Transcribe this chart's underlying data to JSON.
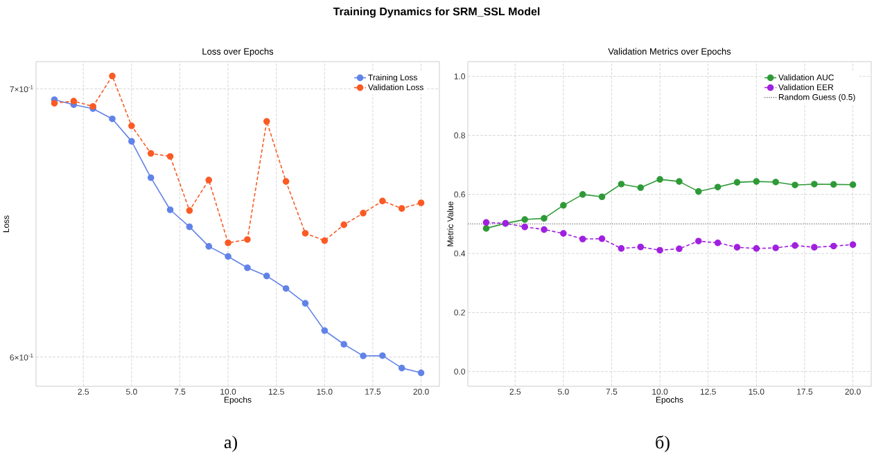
{
  "chart_data": [
    {
      "type": "line",
      "title": "Loss over Epochs",
      "xlabel": "Epochs",
      "ylabel": "Loss",
      "log": "y",
      "annotations": [
        "Training Dynamics for SRM_SSL Model",
        "а)"
      ],
      "x": [
        1,
        2,
        3,
        4,
        5,
        6,
        7,
        8,
        9,
        10,
        11,
        12,
        13,
        14,
        15,
        16,
        17,
        18,
        19,
        20
      ],
      "series": [
        {
          "name": "Training Loss",
          "color": "#6183e8",
          "line_style": "solid",
          "values": [
            0.6956,
            0.6936,
            0.692,
            0.688,
            0.6792,
            0.6651,
            0.653,
            0.6466,
            0.6394,
            0.6357,
            0.6316,
            0.6286,
            0.6241,
            0.6188,
            0.6092,
            0.6044,
            0.6004,
            0.6005,
            0.5962,
            0.5946
          ]
        },
        {
          "name": "Validation Loss",
          "color": "#fa5a23",
          "line_style": "dashed",
          "values": [
            0.6942,
            0.695,
            0.6929,
            0.7051,
            0.6852,
            0.6745,
            0.6733,
            0.6527,
            0.6642,
            0.6407,
            0.6419,
            0.687,
            0.6637,
            0.6442,
            0.6415,
            0.6474,
            0.6517,
            0.6563,
            0.6535,
            0.6556
          ]
        }
      ],
      "xlim": [
        0.05,
        20.95
      ],
      "ylim": [
        0.59,
        0.711
      ],
      "xticks": [
        {
          "value": 2.5,
          "label": "2.5"
        },
        {
          "value": 5,
          "label": "5.0"
        },
        {
          "value": 7.5,
          "label": "7.5"
        },
        {
          "value": 10,
          "label": "10.0"
        },
        {
          "value": 12.5,
          "label": "12.5"
        },
        {
          "value": 15,
          "label": "15.0"
        },
        {
          "value": 17.5,
          "label": "17.5"
        },
        {
          "value": 20,
          "label": "20.0"
        }
      ],
      "yticks": [
        {
          "value": 0.6,
          "label": "6×10$^{-1}$"
        },
        {
          "value": 0.7,
          "label": "7×10$^{-1}$"
        }
      ],
      "grid": true,
      "legend": "top right",
      "marker": "circle"
    },
    {
      "type": "line",
      "title": "Validation Metrics over Epochs",
      "xlabel": "Epochs",
      "ylabel": "Metric Value",
      "annotations": [
        "б)"
      ],
      "x": [
        1,
        2,
        3,
        4,
        5,
        6,
        7,
        8,
        9,
        10,
        11,
        12,
        13,
        14,
        15,
        16,
        17,
        18,
        19,
        20
      ],
      "series": [
        {
          "name": "Validation AUC",
          "color": "#2e9a37",
          "line_style": "solid",
          "values": [
            0.485,
            0.502,
            0.515,
            0.519,
            0.563,
            0.6,
            0.592,
            0.635,
            0.623,
            0.651,
            0.644,
            0.61,
            0.625,
            0.641,
            0.644,
            0.642,
            0.632,
            0.635,
            0.634,
            0.633
          ]
        },
        {
          "name": "Validation EER",
          "color": "#a020e0",
          "line_style": "dashed",
          "values": [
            0.505,
            0.502,
            0.49,
            0.481,
            0.468,
            0.449,
            0.45,
            0.417,
            0.422,
            0.411,
            0.416,
            0.442,
            0.436,
            0.421,
            0.417,
            0.419,
            0.427,
            0.421,
            0.425,
            0.43
          ]
        }
      ],
      "ref_lines": [
        {
          "axis": "y",
          "value": 0.5,
          "label": "Random Guess (0.5)",
          "color": "#666666",
          "line_style": "dotted"
        }
      ],
      "xlim": [
        0.05,
        20.95
      ],
      "ylim": [
        -0.05,
        1.05
      ],
      "xticks": [
        {
          "value": 2.5,
          "label": "2.5"
        },
        {
          "value": 5,
          "label": "5.0"
        },
        {
          "value": 7.5,
          "label": "7.5"
        },
        {
          "value": 10,
          "label": "10.0"
        },
        {
          "value": 12.5,
          "label": "12.5"
        },
        {
          "value": 15,
          "label": "15.0"
        },
        {
          "value": 17.5,
          "label": "17.5"
        },
        {
          "value": 20,
          "label": "20.0"
        }
      ],
      "yticks": [
        {
          "value": 0,
          "label": "0.0"
        },
        {
          "value": 0.2,
          "label": "0.2"
        },
        {
          "value": 0.4,
          "label": "0.4"
        },
        {
          "value": 0.6,
          "label": "0.6"
        },
        {
          "value": 0.8,
          "label": "0.8"
        },
        {
          "value": 1,
          "label": "1.0"
        }
      ],
      "grid": true,
      "legend": "top right",
      "marker": "circle"
    }
  ]
}
